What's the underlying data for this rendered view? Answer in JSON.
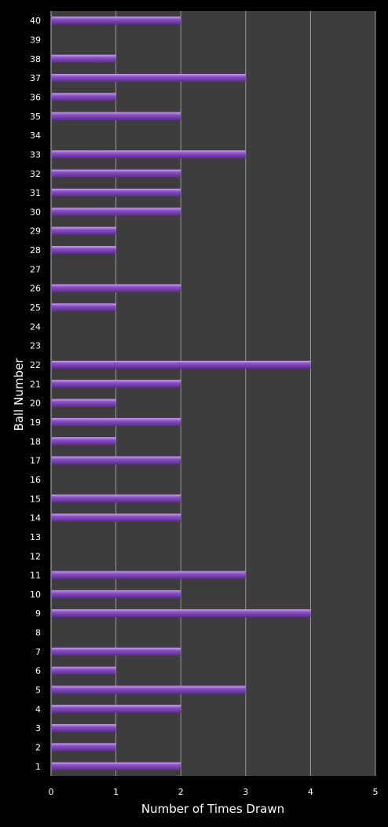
{
  "chart_data": {
    "type": "bar",
    "orientation": "horizontal",
    "xlabel": "Number of Times Drawn",
    "ylabel": "Ball Number",
    "xlim": [
      0,
      5
    ],
    "xticks": [
      "0",
      "1",
      "2",
      "3",
      "4",
      "5"
    ],
    "grid": true,
    "legend": "none",
    "colors": {
      "bar": "#7b3fb5",
      "bar_highlight": "#b58ae0",
      "plot_bg": "#3d3d3d",
      "page_bg": "#000000",
      "grid": "#9a9a9a"
    },
    "categories": [
      "1",
      "2",
      "3",
      "4",
      "5",
      "6",
      "7",
      "8",
      "9",
      "10",
      "11",
      "12",
      "13",
      "14",
      "15",
      "16",
      "17",
      "18",
      "19",
      "20",
      "21",
      "22",
      "23",
      "24",
      "25",
      "26",
      "27",
      "28",
      "29",
      "30",
      "31",
      "32",
      "33",
      "34",
      "35",
      "36",
      "37",
      "38",
      "39",
      "40"
    ],
    "values": [
      2,
      1,
      1,
      2,
      3,
      1,
      2,
      0,
      4,
      2,
      3,
      0,
      0,
      2,
      2,
      0,
      2,
      1,
      2,
      1,
      2,
      4,
      0,
      0,
      1,
      2,
      0,
      1,
      1,
      2,
      2,
      2,
      3,
      0,
      2,
      1,
      3,
      1,
      0,
      2
    ]
  }
}
